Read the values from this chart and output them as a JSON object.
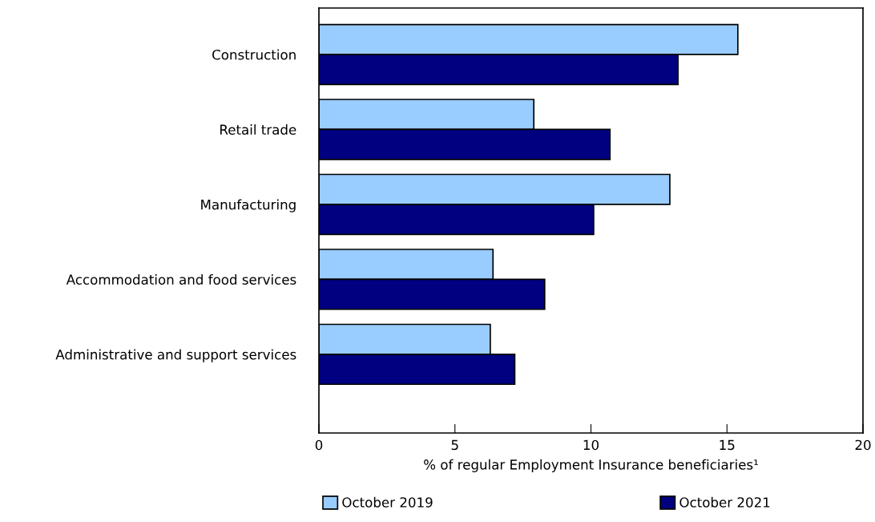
{
  "chart_data": {
    "type": "bar",
    "orientation": "horizontal",
    "categories": [
      "Construction",
      "Retail trade",
      "Manufacturing",
      "Accommodation and food services",
      "Administrative and support services"
    ],
    "series": [
      {
        "name": "October 2019",
        "color": "#99ccff",
        "values": [
          15.4,
          7.9,
          12.9,
          6.4,
          6.3
        ]
      },
      {
        "name": "October 2021",
        "color": "#000080",
        "values": [
          13.2,
          10.7,
          10.1,
          8.3,
          7.2
        ]
      }
    ],
    "xlabel": "% of regular Employment Insurance beneficiaries¹",
    "xlim": [
      0,
      20
    ],
    "xticks": [
      0,
      5,
      10,
      15,
      20
    ],
    "grid": false,
    "legend": "bottom"
  }
}
